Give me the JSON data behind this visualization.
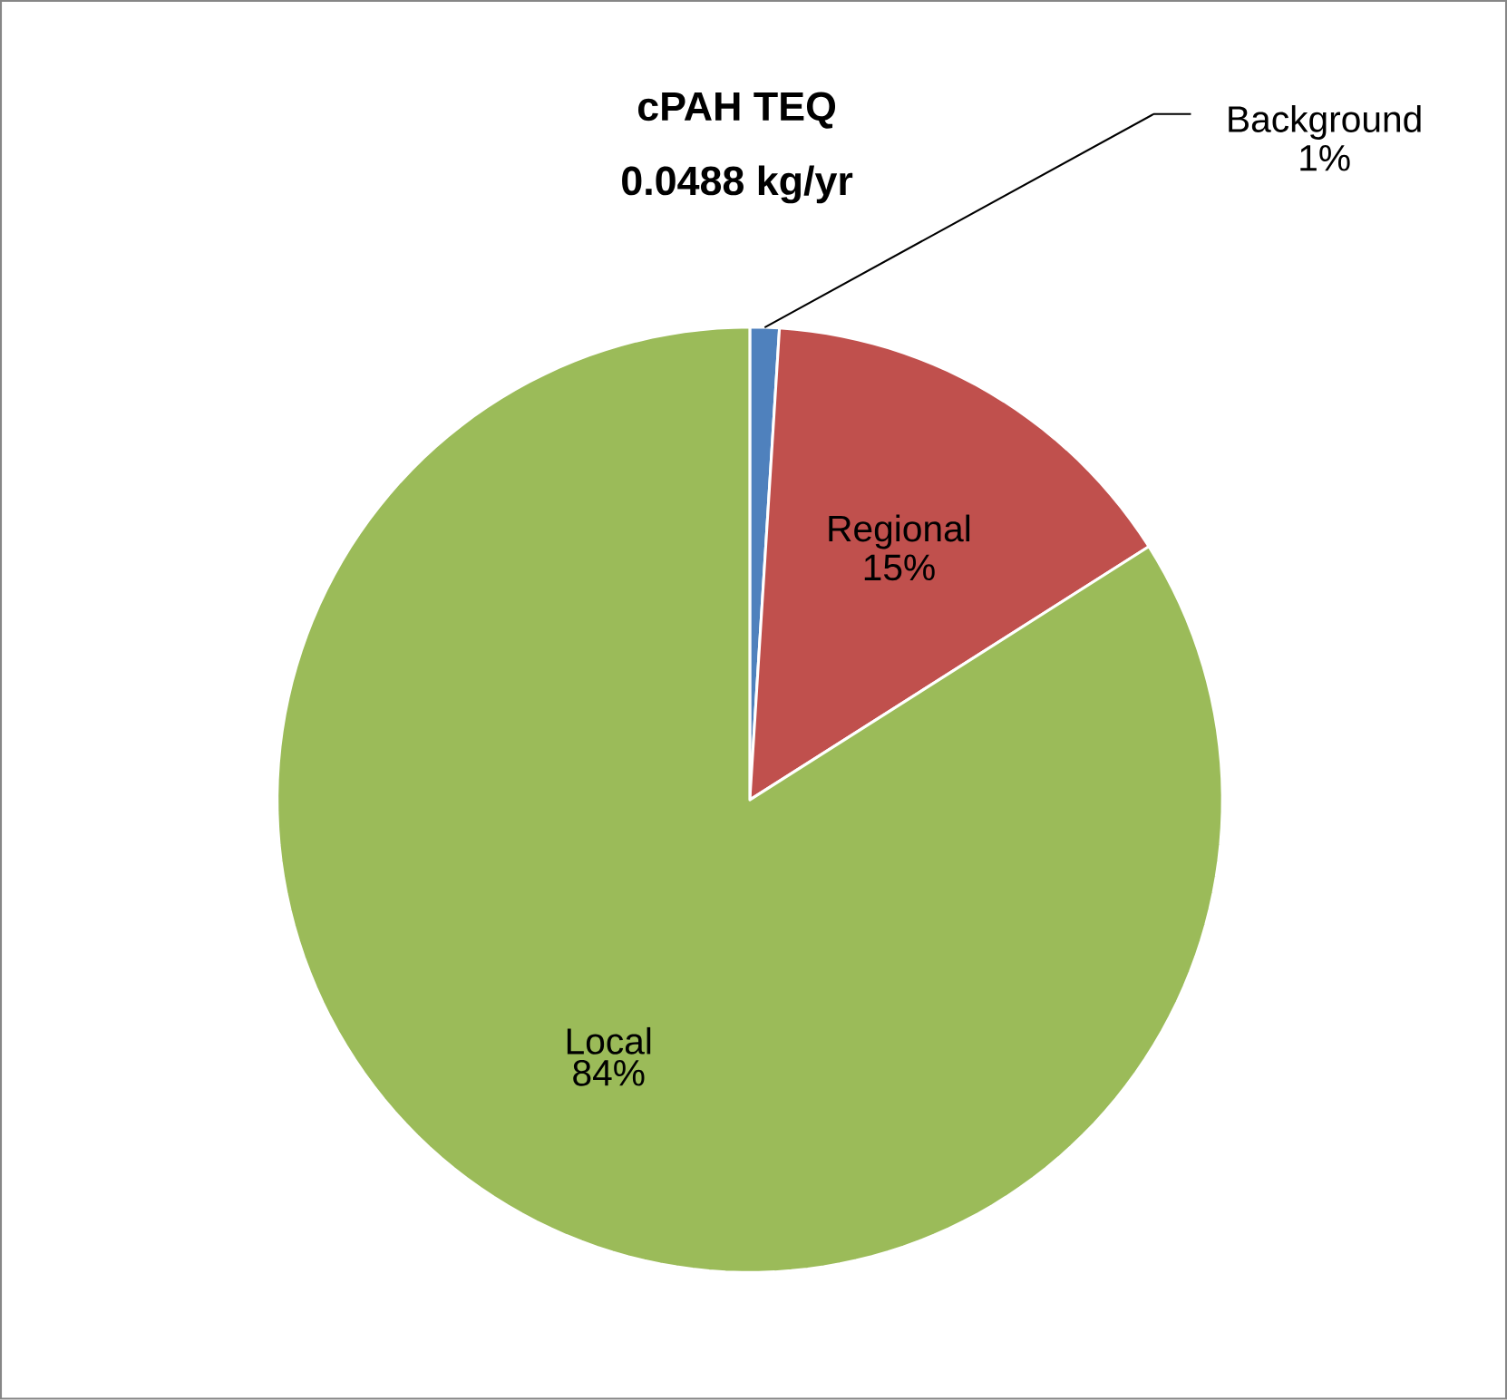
{
  "chart_data": {
    "type": "pie",
    "title": "cPAH TEQ",
    "subtitle": "0.0488 kg/yr",
    "categories": [
      "Background",
      "Regional",
      "Local"
    ],
    "values": [
      1,
      15,
      84
    ],
    "colors": [
      "#4f81bd",
      "#c0504d",
      "#9bbb59"
    ],
    "value_labels": [
      "1%",
      "15%",
      "84%"
    ]
  }
}
